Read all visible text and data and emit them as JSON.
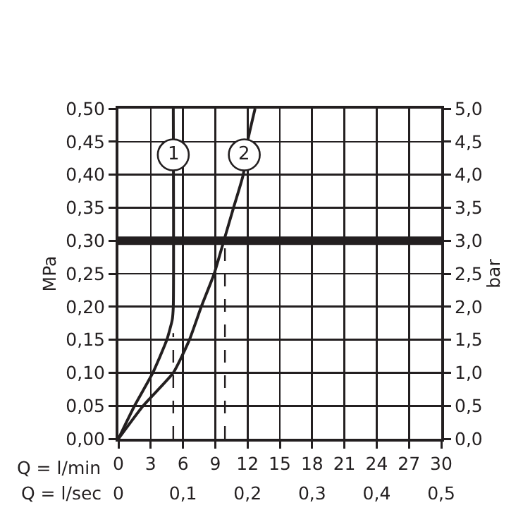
{
  "chart_data": {
    "type": "line",
    "ylabel": "MPa",
    "y2label": "bar",
    "xlabel": "Q = l/min",
    "x2label": "Q = l/sec",
    "xlim": [
      0,
      30
    ],
    "xticks": [
      0,
      3,
      6,
      9,
      12,
      15,
      18,
      21,
      24,
      27,
      30
    ],
    "x2lim": [
      0,
      0.5
    ],
    "x2ticks": [
      {
        "value": 0,
        "label": "0"
      },
      {
        "value": 0.1,
        "label": "0,1"
      },
      {
        "value": 0.2,
        "label": "0,2"
      },
      {
        "value": 0.3,
        "label": "0,3"
      },
      {
        "value": 0.4,
        "label": "0,4"
      },
      {
        "value": 0.5,
        "label": "0,5"
      }
    ],
    "ylim": [
      0,
      0.5
    ],
    "yticks": [
      {
        "value": 0,
        "label": "0,00"
      },
      {
        "value": 0.05,
        "label": "0,05"
      },
      {
        "value": 0.1,
        "label": "0,10"
      },
      {
        "value": 0.15,
        "label": "0,15"
      },
      {
        "value": 0.2,
        "label": "0,20"
      },
      {
        "value": 0.25,
        "label": "0,25"
      },
      {
        "value": 0.3,
        "label": "0,30"
      },
      {
        "value": 0.35,
        "label": "0,35"
      },
      {
        "value": 0.4,
        "label": "0,40"
      },
      {
        "value": 0.45,
        "label": "0,45"
      },
      {
        "value": 0.5,
        "label": "0,50"
      }
    ],
    "y2lim": [
      0,
      5
    ],
    "y2ticks": [
      {
        "value": 0,
        "label": "0,0"
      },
      {
        "value": 0.5,
        "label": "0,5"
      },
      {
        "value": 1,
        "label": "1,0"
      },
      {
        "value": 1.5,
        "label": "1,5"
      },
      {
        "value": 2,
        "label": "2,0"
      },
      {
        "value": 2.5,
        "label": "2,5"
      },
      {
        "value": 3,
        "label": "3,0"
      },
      {
        "value": 3.5,
        "label": "3,5"
      },
      {
        "value": 4,
        "label": "4,0"
      },
      {
        "value": 4.5,
        "label": "4,5"
      },
      {
        "value": 5,
        "label": "5,0"
      }
    ],
    "series": [
      {
        "color": "#231f20",
        "x": [
          0,
          1.5,
          3.2,
          4.5,
          5.0,
          5.1,
          5.1
        ],
        "values": [
          0,
          0.05,
          0.1,
          0.15,
          0.18,
          0.2,
          0.5
        ]
      },
      {
        "color": "#231f20",
        "x": [
          0,
          2.3,
          5.1,
          6.6,
          7.7,
          8.9,
          9.8,
          10.7,
          11.6,
          12.0,
          12.7
        ],
        "values": [
          0,
          0.05,
          0.1,
          0.15,
          0.2,
          0.25,
          0.3,
          0.35,
          0.4,
          0.45,
          0.5
        ]
      },
      {
        "color": "#231f20",
        "line_style": "dashed",
        "x": [
          5.1,
          5.1
        ],
        "values": [
          0,
          0.16
        ]
      },
      {
        "color": "#231f20",
        "line_style": "dashed",
        "x": [
          9.9,
          9.9
        ],
        "values": [
          0,
          0.3
        ]
      }
    ],
    "ref_lines": [
      {
        "axis": "y",
        "value": 0.3,
        "color": "#231f20"
      }
    ],
    "annotations": [
      {
        "text": "1",
        "x": 5.1,
        "y": 0.43
      },
      {
        "text": "2",
        "x": 11.7,
        "y": 0.43
      }
    ],
    "grid": true,
    "marker": "none",
    "line_style": "solid"
  }
}
